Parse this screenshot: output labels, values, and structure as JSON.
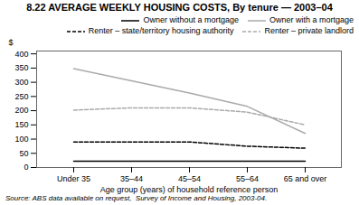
{
  "chart_data": {
    "type": "line",
    "title": "8.22  AVERAGE WEEKLY HOUSING COSTS, By tenure — 2003–04",
    "xlabel": "Age group (years) of household reference person",
    "ylabel": "$",
    "caption": "Source: ABS data available on request,  Survey of Income and Housing, 2003-04.",
    "categories": [
      "Under 35",
      "35–44",
      "45–54",
      "55–64",
      "65 and over"
    ],
    "series": [
      {
        "name": "Owner without a mortgage",
        "color": "#000000",
        "line_style": "solid",
        "values": [
          22,
          22,
          22,
          22,
          22
        ]
      },
      {
        "name": "Owner with a mortgage",
        "color": "#aaaaaa",
        "line_style": "solid",
        "values": [
          348,
          305,
          262,
          215,
          120
        ]
      },
      {
        "name": "Renter – state/territory housing authority",
        "color": "#000000",
        "line_style": "dashed",
        "values": [
          90,
          90,
          90,
          75,
          68
        ]
      },
      {
        "name": "Renter – private landlord",
        "color": "#aaaaaa",
        "line_style": "dashed",
        "values": [
          202,
          210,
          210,
          195,
          150
        ]
      }
    ],
    "ylim": [
      0,
      410
    ],
    "yticks": [
      0,
      50,
      100,
      150,
      200,
      250,
      300,
      350,
      400
    ],
    "grid": false,
    "legend": "upper right"
  }
}
